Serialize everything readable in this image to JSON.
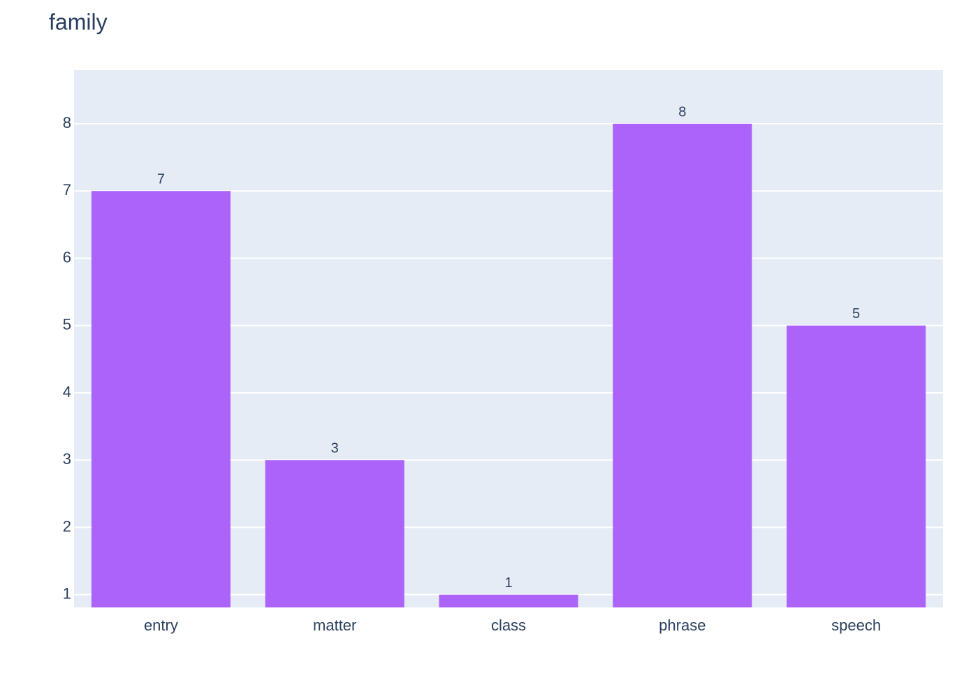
{
  "chart_data": {
    "type": "bar",
    "title": "family",
    "categories": [
      "entry",
      "matter",
      "class",
      "phrase",
      "speech"
    ],
    "values": [
      7,
      3,
      1,
      8,
      5
    ],
    "color": "#ab63fa",
    "ylim": [
      0.81,
      8.8
    ],
    "yticks": [
      1,
      2,
      3,
      4,
      5,
      6,
      7,
      8
    ],
    "grid": true
  }
}
